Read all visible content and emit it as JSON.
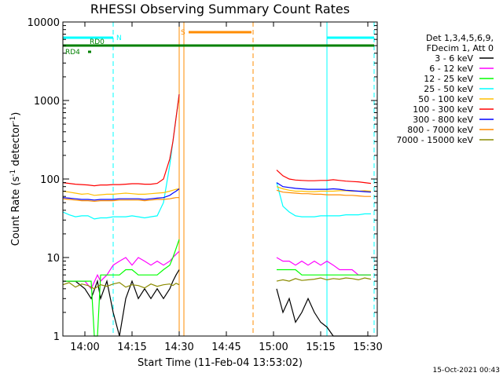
{
  "chart_data": {
    "type": "line",
    "title": "RHESSI Observing Summary Count Rates",
    "xlabel": "Start Time (11-Feb-04 13:53:02)",
    "ylabel_main": "Count Rate (s",
    "ylabel_sup1": "-1",
    "ylabel_mid": " detector",
    "ylabel_sup2": "-1",
    "ylabel_end": ")",
    "x_unit": "minutes since 13:53",
    "xlim": [
      0,
      100
    ],
    "ylim": [
      1,
      10000
    ],
    "yscale": "log",
    "x_ticks": [
      {
        "label": "14:00",
        "value": 7
      },
      {
        "label": "14:15",
        "value": 22
      },
      {
        "label": "14:30",
        "value": 37
      },
      {
        "label": "14:45",
        "value": 52
      },
      {
        "label": "15:00",
        "value": 67
      },
      {
        "label": "15:15",
        "value": 82
      },
      {
        "label": "15:30",
        "value": 97
      }
    ],
    "y_ticks": [
      {
        "label": "1",
        "value": 1
      },
      {
        "label": "10",
        "value": 10
      },
      {
        "label": "100",
        "value": 100
      },
      {
        "label": "1000",
        "value": 1000
      },
      {
        "label": "10000",
        "value": 10000
      }
    ],
    "legend_header": [
      "Det 1,3,4,5,6,9,",
      "FDecim 1, Att 0"
    ],
    "legend_position": "right",
    "timestamp": "15-Oct-2021 00:43",
    "series": [
      {
        "name": "3 - 6 keV",
        "color": "#000000",
        "x": [
          0,
          4,
          7,
          9,
          11,
          12,
          14,
          16,
          18,
          20,
          22,
          24,
          26,
          28,
          30,
          32,
          34,
          35,
          36,
          37,
          38,
          41,
          42,
          44,
          46,
          48,
          50,
          52,
          54,
          56,
          58,
          60,
          62,
          64,
          66,
          68,
          70,
          72,
          74,
          76,
          78,
          80,
          82,
          84,
          86,
          88,
          90,
          92,
          94,
          96,
          98
        ],
        "y": [
          5,
          5,
          4,
          3,
          5,
          3,
          5,
          2,
          1,
          3,
          5,
          3,
          4,
          3,
          4,
          3,
          4,
          5,
          6,
          7,
          null,
          null,
          null,
          null,
          null,
          null,
          null,
          null,
          null,
          null,
          null,
          null,
          null,
          null,
          null,
          4,
          2,
          3,
          1.5,
          2,
          3,
          2,
          1.5,
          1.3,
          1,
          1,
          1,
          1,
          1,
          1,
          1
        ]
      },
      {
        "name": "6 - 12 keV",
        "color": "#ff00ff",
        "x": [
          0,
          4,
          7,
          9,
          11,
          12,
          14,
          16,
          18,
          20,
          22,
          24,
          26,
          28,
          30,
          32,
          34,
          35,
          36,
          37,
          38,
          67,
          68,
          70,
          72,
          74,
          76,
          78,
          80,
          82,
          84,
          86,
          88,
          90,
          92,
          94,
          96,
          98
        ],
        "y": [
          5,
          5,
          5,
          4,
          6,
          5,
          6,
          8,
          9,
          10,
          8,
          10,
          9,
          8,
          9,
          8,
          9,
          10,
          11,
          12,
          null,
          null,
          10,
          9,
          9,
          8,
          9,
          8,
          9,
          8,
          9,
          8,
          7,
          7,
          7,
          6,
          6,
          6
        ]
      },
      {
        "name": "12 - 25 keV",
        "color": "#00ff00",
        "x": [
          0,
          4,
          7,
          9,
          10,
          11,
          12,
          14,
          16,
          18,
          20,
          22,
          24,
          26,
          28,
          30,
          32,
          34,
          35,
          36,
          37,
          38,
          67,
          68,
          70,
          72,
          74,
          76,
          78,
          80,
          82,
          84,
          86,
          88,
          90,
          92,
          94,
          96,
          98
        ],
        "y": [
          5,
          5,
          5,
          5,
          1,
          1,
          6,
          6,
          6,
          6,
          7,
          7,
          6,
          6,
          6,
          6,
          7,
          8,
          10,
          13,
          17,
          null,
          null,
          7,
          7,
          7,
          7,
          6,
          6,
          6,
          6,
          6,
          6,
          6,
          6,
          6,
          6,
          6,
          6
        ]
      },
      {
        "name": "25 - 50 keV",
        "color": "#00ffff",
        "x": [
          0,
          2,
          4,
          6,
          8,
          10,
          12,
          14,
          16,
          18,
          20,
          22,
          24,
          26,
          28,
          30,
          32,
          34,
          35,
          36,
          37,
          38,
          67,
          68,
          70,
          72,
          74,
          76,
          78,
          80,
          82,
          84,
          86,
          88,
          90,
          92,
          94,
          96,
          98
        ],
        "y": [
          38,
          35,
          33,
          34,
          34,
          31,
          32,
          32,
          33,
          33,
          33,
          34,
          33,
          32,
          33,
          34,
          50,
          150,
          300,
          600,
          1200,
          null,
          null,
          90,
          45,
          38,
          34,
          33,
          33,
          33,
          34,
          34,
          34,
          34,
          35,
          35,
          35,
          36,
          36
        ]
      },
      {
        "name": "50 - 100 keV",
        "color": "#ffbf00",
        "x": [
          0,
          2,
          4,
          6,
          8,
          10,
          12,
          14,
          16,
          18,
          20,
          22,
          24,
          26,
          28,
          30,
          32,
          34,
          35,
          36,
          37,
          38,
          67,
          68,
          70,
          72,
          74,
          76,
          78,
          80,
          82,
          84,
          86,
          88,
          90,
          92,
          94,
          96,
          98
        ],
        "y": [
          70,
          68,
          66,
          64,
          65,
          62,
          63,
          64,
          64,
          65,
          66,
          65,
          64,
          64,
          65,
          66,
          67,
          70,
          72,
          74,
          75,
          null,
          null,
          80,
          75,
          72,
          70,
          70,
          69,
          69,
          70,
          70,
          70,
          71,
          71,
          70,
          70,
          71,
          70
        ]
      },
      {
        "name": "100 - 300 keV",
        "color": "#ff0000",
        "x": [
          0,
          2,
          4,
          6,
          8,
          10,
          12,
          14,
          16,
          18,
          20,
          22,
          24,
          26,
          28,
          30,
          32,
          34,
          35,
          36,
          37,
          38,
          67,
          68,
          70,
          72,
          74,
          76,
          78,
          80,
          82,
          84,
          86,
          88,
          90,
          92,
          94,
          96,
          98
        ],
        "y": [
          90,
          88,
          86,
          85,
          84,
          82,
          84,
          84,
          85,
          85,
          86,
          87,
          87,
          86,
          86,
          88,
          100,
          180,
          300,
          600,
          1200,
          null,
          null,
          130,
          110,
          100,
          97,
          96,
          95,
          95,
          96,
          96,
          98,
          96,
          94,
          93,
          92,
          90,
          88
        ]
      },
      {
        "name": "300 - 800 keV",
        "color": "#0000ff",
        "x": [
          0,
          2,
          4,
          6,
          8,
          10,
          12,
          14,
          16,
          18,
          20,
          22,
          24,
          26,
          28,
          30,
          32,
          34,
          35,
          36,
          37,
          38,
          67,
          68,
          70,
          72,
          74,
          76,
          78,
          80,
          82,
          84,
          86,
          88,
          90,
          92,
          94,
          96,
          98
        ],
        "y": [
          58,
          57,
          56,
          55,
          55,
          54,
          55,
          55,
          55,
          56,
          56,
          56,
          56,
          55,
          56,
          57,
          58,
          62,
          66,
          70,
          75,
          null,
          null,
          90,
          80,
          78,
          76,
          75,
          74,
          74,
          74,
          74,
          75,
          74,
          72,
          71,
          70,
          69,
          68
        ]
      },
      {
        "name": "800 - 7000 keV",
        "color": "#ff8c00",
        "x": [
          0,
          2,
          4,
          6,
          8,
          10,
          12,
          14,
          16,
          18,
          20,
          22,
          24,
          26,
          28,
          30,
          32,
          34,
          35,
          36,
          37,
          38,
          67,
          68,
          70,
          72,
          74,
          76,
          78,
          80,
          82,
          84,
          86,
          88,
          90,
          92,
          94,
          96,
          98
        ],
        "y": [
          56,
          55,
          54,
          53,
          53,
          52,
          53,
          53,
          53,
          54,
          54,
          54,
          54,
          53,
          54,
          55,
          55,
          56,
          57,
          58,
          58,
          null,
          null,
          72,
          68,
          67,
          66,
          65,
          65,
          64,
          64,
          63,
          63,
          63,
          62,
          62,
          61,
          60,
          60
        ]
      },
      {
        "name": "7000 - 15000 keV",
        "color": "#8b8b00",
        "x": [
          0,
          2,
          4,
          6,
          8,
          10,
          12,
          14,
          16,
          18,
          20,
          22,
          24,
          26,
          28,
          30,
          32,
          34,
          35,
          36,
          37,
          38,
          67,
          68,
          70,
          72,
          74,
          76,
          78,
          80,
          82,
          84,
          86,
          88,
          90,
          92,
          94,
          96,
          98
        ],
        "y": [
          4.5,
          4.8,
          4.2,
          4.6,
          4.4,
          4,
          4.5,
          4.3,
          4.6,
          4.8,
          4.2,
          4.5,
          4.4,
          4.1,
          4.6,
          4.3,
          4.5,
          4.6,
          4.4,
          4.7,
          4.5,
          null,
          null,
          5,
          5.2,
          5,
          5.4,
          5.1,
          5.2,
          5.3,
          5.5,
          5.2,
          5.4,
          5.3,
          5.5,
          5.4,
          5.2,
          5.5,
          5.3
        ]
      }
    ],
    "status_bars": [
      {
        "label": "N",
        "color": "#00ffff",
        "x": [
          0,
          16
        ],
        "row": "top"
      },
      {
        "label": "N",
        "color": "#00ffff",
        "x": [
          84,
          99
        ],
        "row": "top"
      },
      {
        "label": "S",
        "color": "#ff8c00",
        "x": [
          40,
          60
        ],
        "row": "upper"
      },
      {
        "label": "RD0",
        "color": "#008000",
        "x": [
          0,
          99
        ],
        "row": "middle"
      },
      {
        "label": "RD4",
        "color": "#008000",
        "x": [
          8,
          9
        ],
        "row": "lower"
      }
    ],
    "vertical_markers": [
      {
        "x": 0,
        "color": "#00ffff",
        "dashed": false
      },
      {
        "x": 16,
        "color": "#00ffff",
        "dashed": true
      },
      {
        "x": 37,
        "color": "#ff8c00",
        "dashed": false
      },
      {
        "x": 38.5,
        "color": "#ff8c00",
        "dashed": false
      },
      {
        "x": 60.5,
        "color": "#ff8c00",
        "dashed": true
      },
      {
        "x": 84,
        "color": "#00ffff",
        "dashed": false
      },
      {
        "x": 99,
        "color": "#00ffff",
        "dashed": true
      }
    ]
  }
}
